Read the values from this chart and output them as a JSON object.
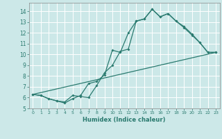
{
  "title": "",
  "xlabel": "Humidex (Indice chaleur)",
  "ylabel": "",
  "bg_color": "#cce8e8",
  "grid_color": "#ffffff",
  "line_color": "#2a7a6f",
  "xlim": [
    -0.5,
    23.5
  ],
  "ylim": [
    5,
    14.8
  ],
  "xticks": [
    0,
    1,
    2,
    3,
    4,
    5,
    6,
    7,
    8,
    9,
    10,
    11,
    12,
    13,
    14,
    15,
    16,
    17,
    18,
    19,
    20,
    21,
    22,
    23
  ],
  "yticks": [
    5,
    6,
    7,
    8,
    9,
    10,
    11,
    12,
    13,
    14
  ],
  "line1_x": [
    0,
    1,
    2,
    3,
    4,
    5,
    6,
    7,
    8,
    9,
    10,
    11,
    12,
    13,
    14,
    15,
    16,
    17,
    18,
    19,
    20,
    21,
    22,
    23
  ],
  "line1_y": [
    6.3,
    6.2,
    5.9,
    5.7,
    5.6,
    6.2,
    6.1,
    6.0,
    7.1,
    8.3,
    9.0,
    10.3,
    10.5,
    13.1,
    13.3,
    14.2,
    13.5,
    13.8,
    13.1,
    12.6,
    11.9,
    11.1,
    10.2,
    10.2
  ],
  "line2_x": [
    0,
    1,
    2,
    3,
    4,
    5,
    6,
    7,
    8,
    9,
    10,
    11,
    12,
    13,
    14,
    15,
    16,
    17,
    18,
    19,
    20,
    21,
    22,
    23
  ],
  "line2_y": [
    6.3,
    6.2,
    5.9,
    5.7,
    5.5,
    5.9,
    6.2,
    7.3,
    7.5,
    8.1,
    10.4,
    10.2,
    12.0,
    13.1,
    13.3,
    14.2,
    13.5,
    13.8,
    13.1,
    12.5,
    11.8,
    11.1,
    10.2,
    10.2
  ],
  "line3_x": [
    0,
    23
  ],
  "line3_y": [
    6.3,
    10.2
  ]
}
